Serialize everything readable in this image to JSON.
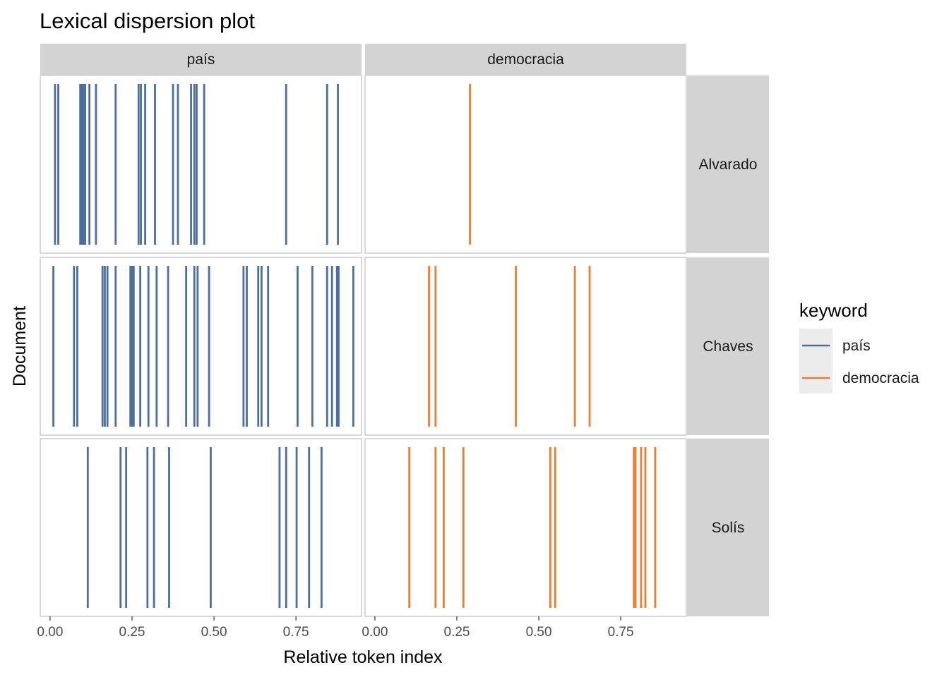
{
  "chart_data": {
    "type": "lexical-dispersion",
    "title": "Lexical dispersion plot",
    "xlabel": "Relative token index",
    "ylabel": "Document",
    "xlim": [
      -0.03,
      0.95
    ],
    "x_ticks": [
      0,
      0.25,
      0.5,
      0.75
    ],
    "x_tick_labels": [
      "0.00",
      "0.25",
      "0.50",
      "0.75"
    ],
    "grid": false,
    "legend": {
      "title": "keyword",
      "position": "right",
      "entries": [
        {
          "label": "país",
          "color": "#4a6fa0"
        },
        {
          "label": "democracia",
          "color": "#ed7d31"
        }
      ]
    },
    "columns": [
      "país",
      "democracia"
    ],
    "rows": [
      "Alvarado",
      "Chaves",
      "Solís"
    ],
    "colors": {
      "país": "#4a6fa0",
      "democracia": "#ed7d31"
    },
    "strip_color": "#d3d3d3",
    "panels": [
      {
        "row": "Alvarado",
        "keyword": "país",
        "x": [
          0.015,
          0.025,
          0.092,
          0.097,
          0.1,
          0.103,
          0.107,
          0.12,
          0.14,
          0.2,
          0.27,
          0.277,
          0.29,
          0.32,
          0.375,
          0.39,
          0.43,
          0.44,
          0.447,
          0.47,
          0.72,
          0.845,
          0.878
        ]
      },
      {
        "row": "Alvarado",
        "keyword": "democracia",
        "x": [
          0.29
        ]
      },
      {
        "row": "Chaves",
        "keyword": "país",
        "x": [
          0.01,
          0.073,
          0.083,
          0.16,
          0.167,
          0.175,
          0.2,
          0.245,
          0.25,
          0.255,
          0.275,
          0.3,
          0.325,
          0.36,
          0.415,
          0.44,
          0.45,
          0.485,
          0.59,
          0.6,
          0.635,
          0.645,
          0.665,
          0.755,
          0.8,
          0.845,
          0.86,
          0.875,
          0.88,
          0.925
        ]
      },
      {
        "row": "Chaves",
        "keyword": "democracia",
        "x": [
          0.165,
          0.185,
          0.43,
          0.61,
          0.655
        ]
      },
      {
        "row": "Solís",
        "keyword": "país",
        "x": [
          0.115,
          0.215,
          0.232,
          0.297,
          0.317,
          0.363,
          0.49,
          0.7,
          0.72,
          0.752,
          0.79,
          0.828
        ]
      },
      {
        "row": "Solís",
        "keyword": "democracia",
        "x": [
          0.105,
          0.185,
          0.21,
          0.27,
          0.535,
          0.55,
          0.79,
          0.795,
          0.812,
          0.825,
          0.855
        ]
      }
    ]
  }
}
